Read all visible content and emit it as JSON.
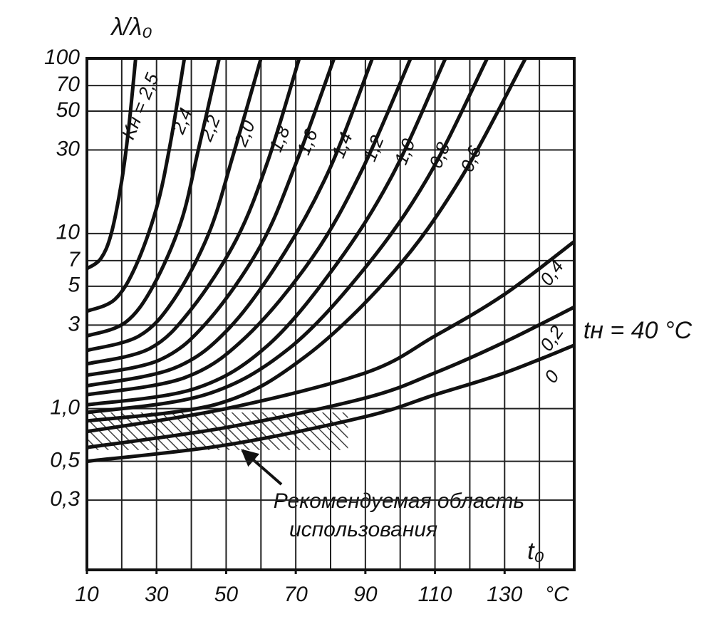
{
  "chart_data": {
    "type": "line",
    "y_label": "λ/λ₀",
    "x_label": "t₀",
    "x_unit": "°C",
    "annotation": "tн = 40 °C",
    "region_note": [
      "Рекомендуемая область",
      "использования"
    ],
    "shaded_region": {
      "xlim": [
        10,
        85
      ],
      "ylim": [
        0.58,
        0.95
      ]
    },
    "log_y": true,
    "xlim": [
      10,
      150
    ],
    "ylim": [
      0.12,
      100
    ],
    "xticks": [
      10,
      30,
      50,
      70,
      90,
      110,
      130
    ],
    "xgrid": [
      10,
      20,
      30,
      40,
      50,
      60,
      70,
      80,
      90,
      100,
      110,
      120,
      130,
      140,
      150
    ],
    "yticks": [
      {
        "value": 0.3,
        "label": "0,3"
      },
      {
        "value": 0.5,
        "label": "0,5"
      },
      {
        "value": 1,
        "label": "1,0"
      },
      3,
      5,
      7,
      10,
      30,
      50,
      70,
      100
    ],
    "color": "#111111",
    "series": [
      {
        "name": "Kн = 2,5",
        "x": [
          10,
          14,
          17,
          20,
          22,
          24
        ],
        "values": [
          6.3,
          7.2,
          10,
          20,
          40,
          100
        ]
      },
      {
        "name": "2,4",
        "x": [
          10,
          18,
          24,
          30,
          34,
          38
        ],
        "values": [
          3.6,
          4.2,
          6.5,
          14,
          33,
          100
        ]
      },
      {
        "name": "2,2",
        "x": [
          10,
          21,
          29,
          37,
          42,
          48
        ],
        "values": [
          2.6,
          3.1,
          5.0,
          11.6,
          30,
          100
        ]
      },
      {
        "name": "2,0",
        "x": [
          10,
          25,
          35,
          45,
          52,
          60
        ],
        "values": [
          2.15,
          2.6,
          4.2,
          10,
          28,
          100
        ]
      },
      {
        "name": "1,8",
        "x": [
          10,
          28,
          40,
          53,
          62,
          71
        ],
        "values": [
          1.8,
          2.2,
          3.7,
          9.3,
          26,
          100
        ]
      },
      {
        "name": "1,6",
        "x": [
          10,
          31,
          45,
          60,
          70,
          81
        ],
        "values": [
          1.55,
          1.9,
          3.2,
          8.6,
          25,
          100
        ]
      },
      {
        "name": "1,4",
        "x": [
          10,
          35,
          51,
          67,
          80,
          92
        ],
        "values": [
          1.35,
          1.7,
          2.9,
          7.9,
          24,
          100
        ]
      },
      {
        "name": "1,2",
        "x": [
          10,
          38,
          56,
          75,
          89,
          103
        ],
        "values": [
          1.2,
          1.5,
          2.6,
          7.4,
          23,
          100
        ]
      },
      {
        "name": "1,0",
        "x": [
          10,
          41,
          62,
          82,
          98,
          113
        ],
        "values": [
          1.05,
          1.3,
          2.3,
          6.8,
          22,
          100
        ]
      },
      {
        "name": "0,8",
        "x": [
          10,
          44,
          68,
          90,
          108,
          125
        ],
        "values": [
          0.95,
          1.2,
          2.2,
          6.4,
          21,
          100
        ]
      },
      {
        "name": "0,6",
        "x": [
          10,
          48,
          73,
          98,
          117,
          136
        ],
        "values": [
          0.85,
          1.07,
          2.0,
          6.0,
          20,
          100
        ]
      },
      {
        "name": "0,4",
        "x": [
          10,
          50,
          90,
          110,
          130,
          150
        ],
        "values": [
          0.74,
          1.0,
          1.6,
          2.6,
          4.5,
          9
        ]
      },
      {
        "name": "0,2",
        "x": [
          10,
          50,
          90,
          110,
          130,
          150
        ],
        "values": [
          0.6,
          0.78,
          1.15,
          1.6,
          2.4,
          3.8
        ]
      },
      {
        "name": "0",
        "x": [
          10,
          50,
          90,
          110,
          130,
          150
        ],
        "values": [
          0.5,
          0.62,
          0.9,
          1.2,
          1.6,
          2.3
        ]
      }
    ]
  }
}
